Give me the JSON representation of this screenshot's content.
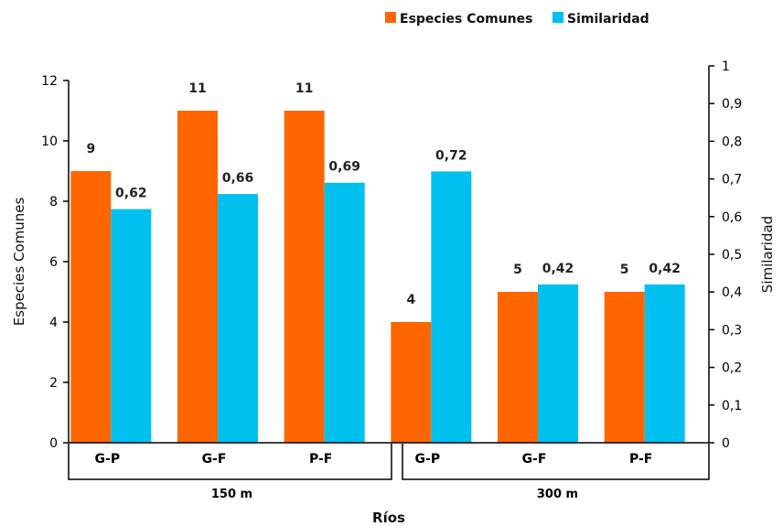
{
  "chart_data": {
    "type": "bar",
    "categories": [
      "G-P",
      "G-F",
      "P-F",
      "G-P",
      "G-F",
      "P-F"
    ],
    "groups": [
      {
        "label": "150 m",
        "categories": [
          "G-P",
          "G-F",
          "P-F"
        ]
      },
      {
        "label": "300 m",
        "categories": [
          "G-P",
          "G-F",
          "P-F"
        ]
      }
    ],
    "series": [
      {
        "name": "Especies Comunes",
        "axis": "left",
        "color": "#FF6600",
        "values": [
          9,
          11,
          11,
          4,
          5,
          5
        ],
        "labels": [
          "9",
          "11",
          "11",
          "4",
          "5",
          "5"
        ]
      },
      {
        "name": "Similaridad",
        "axis": "right",
        "color": "#00C0F0",
        "values": [
          0.62,
          0.66,
          0.69,
          0.72,
          0.42,
          0.42
        ],
        "labels": [
          "0,62",
          "0,66",
          "0,69",
          "0,72",
          "0,42",
          "0,42"
        ]
      }
    ],
    "xlabel": "Ríos",
    "ylabel": "Especies Comunes",
    "y2label": "Similaridad",
    "ylim": [
      0,
      12
    ],
    "y2lim": [
      0,
      1
    ],
    "yticks": [
      "0",
      "2",
      "4",
      "6",
      "8",
      "10",
      "12"
    ],
    "y2ticks": [
      "0",
      "0,1",
      "0,2",
      "0,3",
      "0,4",
      "0,5",
      "0,6",
      "0,7",
      "0,8",
      "0,9",
      "1"
    ],
    "grid": false,
    "legend_position": "top-right"
  }
}
